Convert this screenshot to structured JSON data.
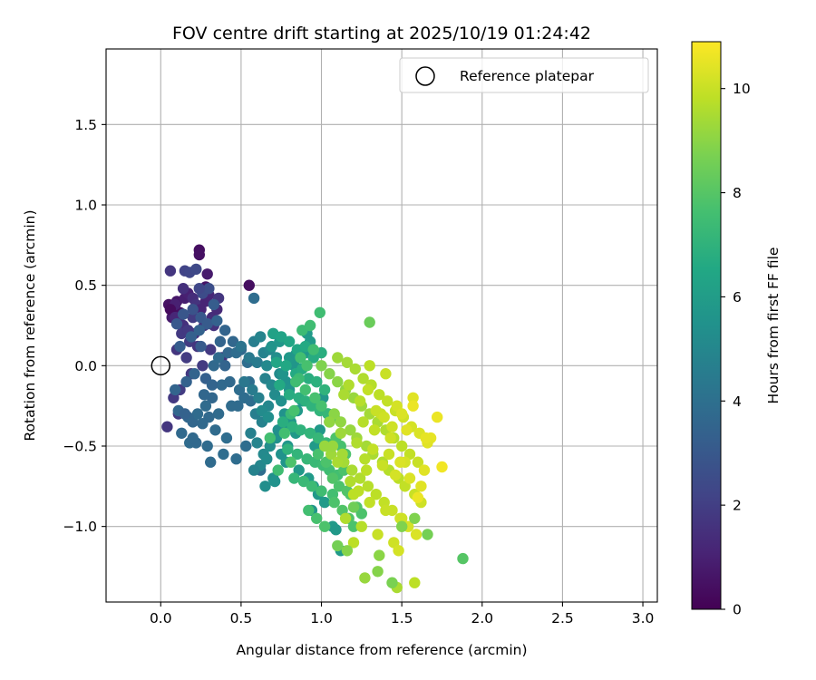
{
  "chart_data": {
    "type": "scatter",
    "title": "FOV centre drift starting at 2025/10/19 01:24:42",
    "xlabel": "Angular distance from reference (arcmin)",
    "ylabel": "Rotation from reference (arcmin)",
    "xlim": [
      -0.34,
      3.09
    ],
    "ylim": [
      -1.47,
      1.97
    ],
    "xticks": [
      0.0,
      0.5,
      1.0,
      1.5,
      2.0,
      2.5,
      3.0
    ],
    "xtick_labels": [
      "0.0",
      "0.5",
      "1.0",
      "1.5",
      "2.0",
      "2.5",
      "3.0"
    ],
    "yticks": [
      -1.0,
      -0.5,
      0.0,
      0.5,
      1.0,
      1.5
    ],
    "ytick_labels": [
      "−1.0",
      "−0.5",
      "0.0",
      "0.5",
      "1.0",
      "1.5"
    ],
    "grid": true,
    "legend": {
      "position": "top-right",
      "entries": [
        "Reference platepar"
      ]
    },
    "reference_point": {
      "x": 0.0,
      "y": 0.0,
      "label": "Reference platepar"
    },
    "colorbar": {
      "label": "Hours from first FF file",
      "colormap": "viridis",
      "range": [
        0,
        10.9
      ],
      "ticks": [
        0,
        2,
        4,
        6,
        8,
        10
      ],
      "tick_labels": [
        "0",
        "2",
        "4",
        "6",
        "8",
        "10"
      ]
    },
    "series": [
      {
        "name": "hour_0_2",
        "x": [
          0.05,
          0.08,
          0.1,
          0.12,
          0.07,
          0.09,
          0.15,
          0.11,
          0.06,
          0.14,
          0.24,
          0.24,
          0.29,
          0.28,
          0.17,
          0.2,
          0.22,
          0.25,
          0.3,
          0.13,
          0.18,
          0.55,
          0.1,
          0.16,
          0.21,
          0.27,
          0.32,
          0.19,
          0.26,
          0.08,
          0.11,
          0.04,
          0.35,
          0.23,
          0.31,
          0.12,
          0.06,
          0.09,
          0.33,
          0.14,
          0.28,
          0.17,
          0.36,
          0.2,
          0.38
        ],
        "y": [
          0.38,
          0.36,
          0.4,
          0.33,
          0.3,
          0.38,
          0.42,
          0.28,
          0.35,
          0.25,
          0.72,
          0.69,
          0.57,
          0.49,
          0.45,
          0.42,
          0.38,
          0.35,
          0.44,
          0.2,
          0.15,
          0.5,
          0.1,
          0.05,
          0.2,
          0.25,
          0.3,
          -0.05,
          0.0,
          -0.2,
          -0.3,
          -0.38,
          0.35,
          0.12,
          0.1,
          -0.15,
          0.59,
          0.3,
          0.25,
          0.48,
          0.4,
          0.22,
          0.42,
          0.3,
          0.05
        ],
        "color_values": [
          0.5,
          0.6,
          0.7,
          0.4,
          0.8,
          1.0,
          0.9,
          1.2,
          0.3,
          1.5,
          0.4,
          0.5,
          0.8,
          0.6,
          1.0,
          1.4,
          1.6,
          1.1,
          1.2,
          1.8,
          1.9,
          0.4,
          1.7,
          1.9,
          1.5,
          1.6,
          1.4,
          1.8,
          1.9,
          1.8,
          1.9,
          1.7,
          1.3,
          1.7,
          1.8,
          1.9,
          1.7,
          1.2,
          1.6,
          1.5,
          1.1,
          1.8,
          1.7,
          1.9,
          1.6
        ]
      },
      {
        "name": "hour_2_4",
        "x": [
          0.15,
          0.18,
          0.22,
          0.26,
          0.3,
          0.2,
          0.14,
          0.1,
          0.25,
          0.29,
          0.33,
          0.12,
          0.19,
          0.24,
          0.35,
          0.4,
          0.45,
          0.37,
          0.42,
          0.5,
          0.28,
          0.16,
          0.21,
          0.09,
          0.32,
          0.38,
          0.43,
          0.27,
          0.36,
          0.48,
          0.52,
          0.56,
          0.2,
          0.13,
          0.18,
          0.3,
          0.23,
          0.34,
          0.41,
          0.47,
          0.53,
          0.26,
          0.31,
          0.39,
          0.29,
          0.22,
          0.17,
          0.44,
          0.49,
          0.55,
          0.33,
          0.36,
          0.47,
          0.54,
          0.25,
          0.4,
          0.11,
          0.2,
          0.28,
          0.15,
          0.32,
          0.58,
          0.6,
          0.62,
          0.24
        ],
        "y": [
          0.59,
          0.58,
          0.6,
          0.45,
          0.48,
          0.35,
          0.32,
          0.26,
          0.3,
          0.26,
          0.38,
          0.12,
          0.18,
          0.22,
          0.28,
          0.22,
          0.15,
          0.15,
          0.08,
          0.1,
          -0.08,
          -0.1,
          -0.05,
          -0.15,
          -0.2,
          -0.12,
          -0.1,
          -0.18,
          -0.3,
          -0.25,
          -0.2,
          -0.22,
          -0.35,
          -0.42,
          -0.48,
          -0.32,
          -0.3,
          -0.4,
          -0.45,
          -0.58,
          -0.5,
          -0.36,
          -0.6,
          -0.55,
          -0.5,
          -0.48,
          -0.32,
          -0.25,
          -0.15,
          -0.1,
          0.0,
          0.05,
          0.08,
          0.02,
          0.12,
          0.0,
          -0.28,
          -0.45,
          -0.25,
          -0.3,
          -0.12,
          0.42,
          0.02,
          -0.65,
          0.48
        ],
        "color_values": [
          2.2,
          2.3,
          2.4,
          2.5,
          2.6,
          2.8,
          2.9,
          3.0,
          3.0,
          3.1,
          3.2,
          3.2,
          3.3,
          3.4,
          3.4,
          3.5,
          3.6,
          3.5,
          3.6,
          3.7,
          3.3,
          3.4,
          3.5,
          3.5,
          3.6,
          3.7,
          3.7,
          3.6,
          3.8,
          3.8,
          3.9,
          3.9,
          3.6,
          3.7,
          3.8,
          3.7,
          3.8,
          3.8,
          3.9,
          3.9,
          3.9,
          3.7,
          3.8,
          3.9,
          3.8,
          3.7,
          3.6,
          3.8,
          3.9,
          3.9,
          3.7,
          3.8,
          3.9,
          3.9,
          3.1,
          3.5,
          3.6,
          3.7,
          3.8,
          3.4,
          3.5,
          3.9,
          3.8,
          3.9,
          2.3
        ]
      },
      {
        "name": "hour_4_6",
        "x": [
          0.5,
          0.55,
          0.6,
          0.58,
          0.64,
          0.68,
          0.62,
          0.7,
          0.72,
          0.66,
          0.52,
          0.57,
          0.61,
          0.65,
          0.69,
          0.74,
          0.59,
          0.63,
          0.67,
          0.71,
          0.75,
          0.78,
          0.8,
          0.56,
          0.6,
          0.64,
          0.68,
          0.72,
          0.76,
          0.62,
          0.66,
          0.7,
          0.58,
          0.77,
          0.73,
          0.81,
          0.85,
          0.88,
          0.65,
          0.71,
          0.79,
          0.84,
          0.69,
          0.74,
          0.82,
          0.87,
          0.9,
          0.63,
          0.67,
          0.75,
          0.78,
          0.86,
          0.92,
          0.95,
          0.98,
          1.02,
          0.94,
          1.07,
          1.09,
          1.12,
          0.96,
          0.99,
          1.04,
          1.01,
          0.97,
          0.89,
          0.93,
          0.83,
          0.76,
          0.8,
          0.84,
          0.88,
          0.91
        ],
        "y": [
          0.12,
          0.05,
          0.02,
          0.15,
          0.08,
          0.1,
          0.18,
          0.2,
          0.05,
          0.0,
          -0.1,
          -0.15,
          -0.2,
          -0.08,
          -0.12,
          -0.05,
          -0.3,
          -0.35,
          -0.25,
          -0.18,
          -0.22,
          -0.1,
          -0.15,
          -0.42,
          -0.48,
          -0.55,
          -0.5,
          -0.45,
          -0.38,
          -0.62,
          -0.58,
          -0.7,
          -0.65,
          -0.3,
          -0.4,
          -0.35,
          -0.28,
          -0.22,
          -0.75,
          -0.72,
          -0.5,
          -0.42,
          0.12,
          0.15,
          0.05,
          -0.02,
          0.08,
          -0.28,
          -0.32,
          -0.55,
          -0.6,
          -0.65,
          -0.7,
          -0.75,
          -0.8,
          -0.85,
          -0.9,
          -1.0,
          -1.02,
          -1.15,
          -0.5,
          -0.4,
          -0.3,
          -0.2,
          -0.1,
          0.1,
          0.15,
          0.0,
          -0.05,
          0.05,
          0.07,
          0.1,
          0.2
        ],
        "color_values": [
          4.2,
          4.4,
          4.5,
          4.6,
          4.8,
          5.0,
          4.9,
          5.2,
          5.3,
          5.1,
          4.3,
          4.5,
          4.7,
          4.8,
          5.0,
          5.2,
          4.6,
          4.8,
          5.0,
          5.2,
          5.4,
          5.5,
          5.6,
          4.7,
          4.9,
          5.1,
          5.3,
          5.5,
          5.6,
          5.0,
          5.2,
          5.4,
          4.8,
          5.5,
          5.4,
          5.7,
          5.8,
          5.9,
          5.3,
          5.5,
          5.7,
          5.8,
          5.6,
          5.7,
          5.8,
          5.9,
          5.9,
          5.2,
          5.3,
          5.5,
          5.6,
          5.8,
          5.9,
          5.9,
          5.8,
          5.9,
          5.7,
          5.9,
          5.8,
          5.9,
          5.9,
          5.8,
          5.9,
          5.7,
          5.6,
          5.8,
          5.9,
          5.7,
          5.6,
          5.8,
          5.7,
          5.9,
          5.9
        ]
      },
      {
        "name": "hour_6_8",
        "x": [
          0.7,
          0.75,
          0.8,
          0.85,
          0.9,
          0.95,
          1.0,
          0.72,
          0.78,
          0.84,
          0.88,
          0.92,
          0.97,
          1.02,
          0.74,
          0.8,
          0.86,
          0.9,
          0.94,
          0.99,
          1.04,
          1.08,
          0.76,
          0.82,
          0.87,
          0.93,
          0.98,
          1.03,
          1.06,
          0.79,
          0.85,
          0.91,
          0.96,
          1.01,
          1.05,
          1.1,
          0.83,
          0.89,
          0.94,
          1.0,
          1.07,
          0.73,
          0.68,
          0.81,
          0.86,
          0.95,
          1.12,
          1.15,
          0.92,
          0.97,
          1.02,
          0.88,
          0.93,
          1.08,
          1.13,
          1.17,
          1.2,
          0.84,
          0.9,
          0.96,
          1.0,
          1.05,
          1.09,
          0.98,
          1.03,
          1.07,
          0.87,
          0.91,
          0.81,
          0.77,
          0.83,
          0.99,
          1.14,
          1.18,
          1.22,
          1.25,
          1.11,
          1.16
        ],
        "y": [
          0.2,
          0.18,
          0.15,
          0.1,
          0.12,
          0.05,
          0.08,
          0.02,
          0.0,
          -0.05,
          -0.02,
          -0.08,
          -0.1,
          -0.15,
          -0.12,
          -0.18,
          -0.2,
          -0.22,
          -0.25,
          -0.28,
          -0.3,
          -0.32,
          -0.35,
          -0.38,
          -0.4,
          -0.42,
          -0.45,
          -0.48,
          -0.5,
          -0.52,
          -0.55,
          -0.58,
          -0.6,
          -0.62,
          -0.65,
          -0.68,
          -0.7,
          -0.72,
          -0.75,
          -0.78,
          -0.8,
          -0.65,
          -0.45,
          -0.3,
          -0.08,
          0.1,
          -0.5,
          -0.55,
          -0.9,
          -0.95,
          -1.0,
          0.22,
          0.25,
          -0.85,
          -0.9,
          -0.95,
          -1.0,
          -0.1,
          -0.15,
          -0.2,
          -0.25,
          -0.35,
          -0.45,
          -0.55,
          -0.6,
          -0.7,
          0.05,
          0.0,
          -0.6,
          -0.42,
          -0.28,
          0.33,
          -0.65,
          -0.8,
          -0.88,
          -0.92,
          -0.75,
          -0.78
        ],
        "color_values": [
          6.2,
          6.3,
          6.4,
          6.5,
          6.6,
          6.7,
          6.8,
          6.4,
          6.5,
          6.6,
          6.7,
          6.8,
          6.9,
          7.0,
          6.6,
          6.7,
          6.8,
          6.9,
          7.0,
          7.1,
          7.2,
          7.3,
          6.8,
          6.9,
          7.0,
          7.1,
          7.2,
          7.3,
          7.4,
          7.0,
          7.1,
          7.2,
          7.3,
          7.4,
          7.5,
          7.6,
          7.2,
          7.3,
          7.4,
          7.5,
          7.6,
          7.5,
          7.6,
          7.3,
          7.4,
          7.5,
          7.7,
          7.8,
          7.6,
          7.7,
          7.8,
          7.4,
          7.5,
          7.8,
          7.9,
          7.9,
          7.8,
          7.5,
          7.6,
          7.7,
          7.7,
          7.8,
          7.8,
          7.7,
          7.8,
          7.9,
          7.6,
          7.7,
          7.8,
          7.6,
          7.7,
          7.5,
          7.8,
          7.9,
          7.9,
          7.8,
          7.8,
          7.9
        ]
      },
      {
        "name": "hour_8_11",
        "x": [
          1.0,
          1.05,
          1.1,
          1.15,
          1.2,
          1.25,
          1.3,
          1.35,
          1.4,
          1.45,
          1.5,
          1.55,
          1.6,
          1.08,
          1.12,
          1.18,
          1.22,
          1.28,
          1.32,
          1.38,
          1.42,
          1.48,
          1.52,
          1.58,
          1.62,
          1.02,
          1.06,
          1.14,
          1.19,
          1.24,
          1.29,
          1.34,
          1.39,
          1.44,
          1.49,
          1.54,
          1.59,
          1.64,
          1.68,
          1.72,
          1.75,
          1.1,
          1.16,
          1.21,
          1.26,
          1.31,
          1.36,
          1.41,
          1.46,
          1.51,
          1.56,
          1.61,
          1.66,
          1.2,
          1.3,
          1.4,
          1.5,
          1.35,
          1.45,
          1.25,
          1.15,
          1.48,
          1.55,
          1.62,
          1.1,
          1.28,
          1.42,
          1.52,
          1.33,
          1.43,
          1.26,
          1.37,
          1.47,
          1.57,
          1.3,
          1.4,
          1.65,
          1.18,
          1.23,
          1.6,
          1.13,
          1.07,
          1.05,
          1.12,
          1.22,
          1.32,
          1.27,
          1.38,
          1.46,
          1.44,
          1.5,
          1.57,
          1.53,
          1.34,
          1.24,
          1.14,
          1.17,
          1.29,
          1.39,
          1.49,
          1.2,
          1.1,
          1.36,
          1.27,
          1.47,
          1.58,
          1.16,
          1.88,
          1.44,
          1.58,
          1.66,
          1.3,
          1.2,
          1.35,
          1.5
        ],
        "y": [
          0.0,
          -0.05,
          -0.1,
          -0.15,
          -0.2,
          -0.25,
          -0.3,
          -0.35,
          -0.4,
          -0.45,
          -0.5,
          -0.55,
          -0.6,
          -0.3,
          -0.35,
          -0.4,
          -0.45,
          -0.5,
          -0.55,
          -0.6,
          -0.65,
          -0.7,
          -0.75,
          -0.8,
          -0.85,
          -0.5,
          -0.55,
          -0.6,
          -0.65,
          -0.7,
          -0.75,
          -0.8,
          -0.85,
          -0.9,
          -0.95,
          -1.0,
          -1.05,
          -0.65,
          -0.45,
          -0.32,
          -0.63,
          0.05,
          0.02,
          -0.02,
          -0.08,
          -0.12,
          -0.18,
          -0.22,
          -0.28,
          -0.32,
          -0.38,
          -0.42,
          -0.48,
          -0.8,
          -0.85,
          -0.9,
          -0.95,
          -1.05,
          -1.1,
          -1.0,
          -0.95,
          -1.15,
          -0.7,
          -0.75,
          -0.6,
          -0.65,
          -0.55,
          -0.6,
          -0.4,
          -0.45,
          -0.35,
          -0.3,
          -0.25,
          -0.2,
          0.0,
          -0.05,
          -0.45,
          -0.72,
          -0.78,
          -0.82,
          -0.55,
          -0.5,
          -0.35,
          -0.42,
          -0.48,
          -0.52,
          -0.58,
          -0.62,
          -0.68,
          -0.38,
          -0.3,
          -0.25,
          -0.4,
          -0.28,
          -0.22,
          -0.18,
          -0.12,
          -0.15,
          -0.32,
          -0.6,
          -1.1,
          -1.12,
          -1.18,
          -1.32,
          -1.38,
          -1.35,
          -1.15,
          -1.2,
          -1.35,
          -0.95,
          -1.05,
          0.27,
          -0.88,
          -1.28,
          -1.0
        ],
        "color_values": [
          8.8,
          8.9,
          9.0,
          9.1,
          9.2,
          9.3,
          9.4,
          9.5,
          9.6,
          9.7,
          9.8,
          9.9,
          10.0,
          9.0,
          9.1,
          9.2,
          9.3,
          9.4,
          9.5,
          9.6,
          9.7,
          9.8,
          9.9,
          10.0,
          10.1,
          9.2,
          9.3,
          9.4,
          9.5,
          9.6,
          9.7,
          9.8,
          9.9,
          10.0,
          10.1,
          10.2,
          10.3,
          10.4,
          10.5,
          10.6,
          10.7,
          9.3,
          9.4,
          9.5,
          9.6,
          9.7,
          9.8,
          9.9,
          10.0,
          10.1,
          10.2,
          10.3,
          10.4,
          9.8,
          9.9,
          10.0,
          10.1,
          10.0,
          10.1,
          9.7,
          9.6,
          10.2,
          10.3,
          10.4,
          9.5,
          9.8,
          10.0,
          10.2,
          9.9,
          10.1,
          9.7,
          10.0,
          10.2,
          10.4,
          9.8,
          10.0,
          10.5,
          9.6,
          9.8,
          10.6,
          9.4,
          9.2,
          9.1,
          9.3,
          9.6,
          9.9,
          9.7,
          10.0,
          10.2,
          10.1,
          10.3,
          10.6,
          10.4,
          10.0,
          9.7,
          9.5,
          9.6,
          9.9,
          10.1,
          10.3,
          9.8,
          8.6,
          9.0,
          9.2,
          9.5,
          9.8,
          8.9,
          8.0,
          8.7,
          8.8,
          8.6,
          8.4,
          8.5,
          8.9,
          8.8
        ]
      }
    ]
  }
}
